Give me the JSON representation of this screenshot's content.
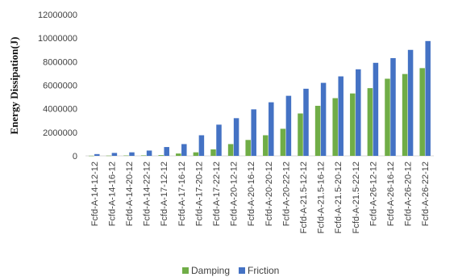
{
  "chart_data": {
    "type": "bar",
    "title": "",
    "xlabel": "",
    "ylabel": "Energy Dissipation(J)",
    "ylim": [
      0,
      12000000
    ],
    "yticks": [
      0,
      2000000,
      4000000,
      6000000,
      8000000,
      10000000,
      12000000
    ],
    "ytick_labels": [
      "0",
      "2000000",
      "4000000",
      "6000000",
      "8000000",
      "10000000",
      "12000000"
    ],
    "grid": false,
    "legend_position": "bottom",
    "categories": [
      "Fcfd-A-14-12-12",
      "Fcfd-A-14-16-12",
      "Fcfd-A-14-20-12",
      "Fcfd-A-14-22-12",
      "Fcfd-A-17-12-12",
      "Fcfd-A-17-16-12",
      "Fcfd-A-17-20-12",
      "Fcfd-A-17-22-12",
      "Fcfd-A-20-12-12",
      "Fcfd-A-20-16-12",
      "Fcfd-A-20-20-12",
      "Fcfd-A-20-22-12",
      "Fcfd-A-21.5-12-12",
      "Fcfd-A-21.5-16-12",
      "Fcfd-A-21.5-20-12",
      "Fcfd-A-21.5-22-12",
      "Fcfd-A-26-12-12",
      "Fcfd-A-26-16-12",
      "Fcfd-A-26-20-12",
      "Fcfd-A-26-22-12"
    ],
    "series": [
      {
        "name": "Damping",
        "color": "#70ad47",
        "values": [
          10000,
          20000,
          30000,
          40000,
          60000,
          200000,
          300000,
          550000,
          1000000,
          1350000,
          1750000,
          2300000,
          3600000,
          4250000,
          4900000,
          5300000,
          5750000,
          6550000,
          6950000,
          7450000
        ]
      },
      {
        "name": "Friction",
        "color": "#4472c4",
        "values": [
          150000,
          250000,
          300000,
          450000,
          750000,
          1000000,
          1750000,
          2650000,
          3200000,
          3950000,
          4550000,
          5100000,
          5700000,
          6200000,
          6750000,
          7350000,
          7900000,
          8300000,
          9000000,
          9750000
        ]
      }
    ]
  }
}
